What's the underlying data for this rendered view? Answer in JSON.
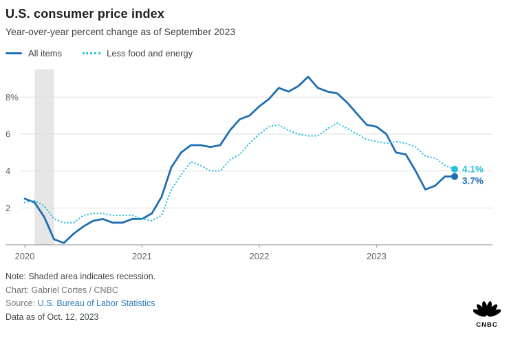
{
  "header": {
    "title": "U.S. consumer price index",
    "subtitle": "Year-over-year percent change as of September 2023"
  },
  "footer": {
    "note": "Note: Shaded area indicates recession.",
    "credit": "Chart: Gabriel Cortes / CNBC",
    "source_prefix": "Source: ",
    "source_link": "U.S. Bureau of Labor Statistics",
    "data_as_of": "Data as of Oct. 12, 2023"
  },
  "logo": {
    "label": "CNBC"
  },
  "chart_data": {
    "type": "line",
    "title": "U.S. consumer price index",
    "subtitle": "Year-over-year percent change as of September 2023",
    "x_unit": "month",
    "x_start": "2020-01",
    "x_end": "2023-09",
    "x_ticks": [
      0,
      12,
      24,
      36
    ],
    "x_tick_labels": [
      "2020",
      "2021",
      "2022",
      "2023"
    ],
    "y_ticks": [
      2,
      4,
      6,
      8
    ],
    "y_tick_labels": [
      "2",
      "4",
      "6",
      "8%"
    ],
    "ylim": [
      0,
      9.5
    ],
    "grid": "horizontal",
    "legend_position": "top-left",
    "recession_band": {
      "from": "2020-02",
      "to": "2020-04"
    },
    "colors": {
      "grid": "#dddddd",
      "baseline": "#8a9096",
      "axis_text": "#5f6569",
      "recession_band": "#e6e6e6"
    },
    "series": [
      {
        "name": "All items",
        "color": "#1f6eb2",
        "style": "solid",
        "end_label": "3.7%",
        "values": [
          2.5,
          2.3,
          1.5,
          0.3,
          0.1,
          0.6,
          1.0,
          1.3,
          1.4,
          1.2,
          1.2,
          1.4,
          1.4,
          1.7,
          2.6,
          4.2,
          5.0,
          5.4,
          5.4,
          5.3,
          5.4,
          6.2,
          6.8,
          7.0,
          7.5,
          7.9,
          8.5,
          8.3,
          8.6,
          9.1,
          8.5,
          8.3,
          8.2,
          7.7,
          7.1,
          6.5,
          6.4,
          6.0,
          5.0,
          4.9,
          4.0,
          3.0,
          3.2,
          3.7,
          3.7
        ]
      },
      {
        "name": "Less food and energy",
        "color": "#29c0df",
        "style": "dotted",
        "end_label": "4.1%",
        "values": [
          2.3,
          2.4,
          2.1,
          1.4,
          1.2,
          1.2,
          1.6,
          1.7,
          1.7,
          1.6,
          1.6,
          1.6,
          1.4,
          1.3,
          1.6,
          3.0,
          3.8,
          4.5,
          4.3,
          4.0,
          4.0,
          4.6,
          4.9,
          5.5,
          6.0,
          6.4,
          6.5,
          6.2,
          6.0,
          5.9,
          5.9,
          6.3,
          6.6,
          6.3,
          6.0,
          5.7,
          5.6,
          5.5,
          5.6,
          5.5,
          5.3,
          4.8,
          4.7,
          4.3,
          4.1
        ]
      }
    ]
  }
}
